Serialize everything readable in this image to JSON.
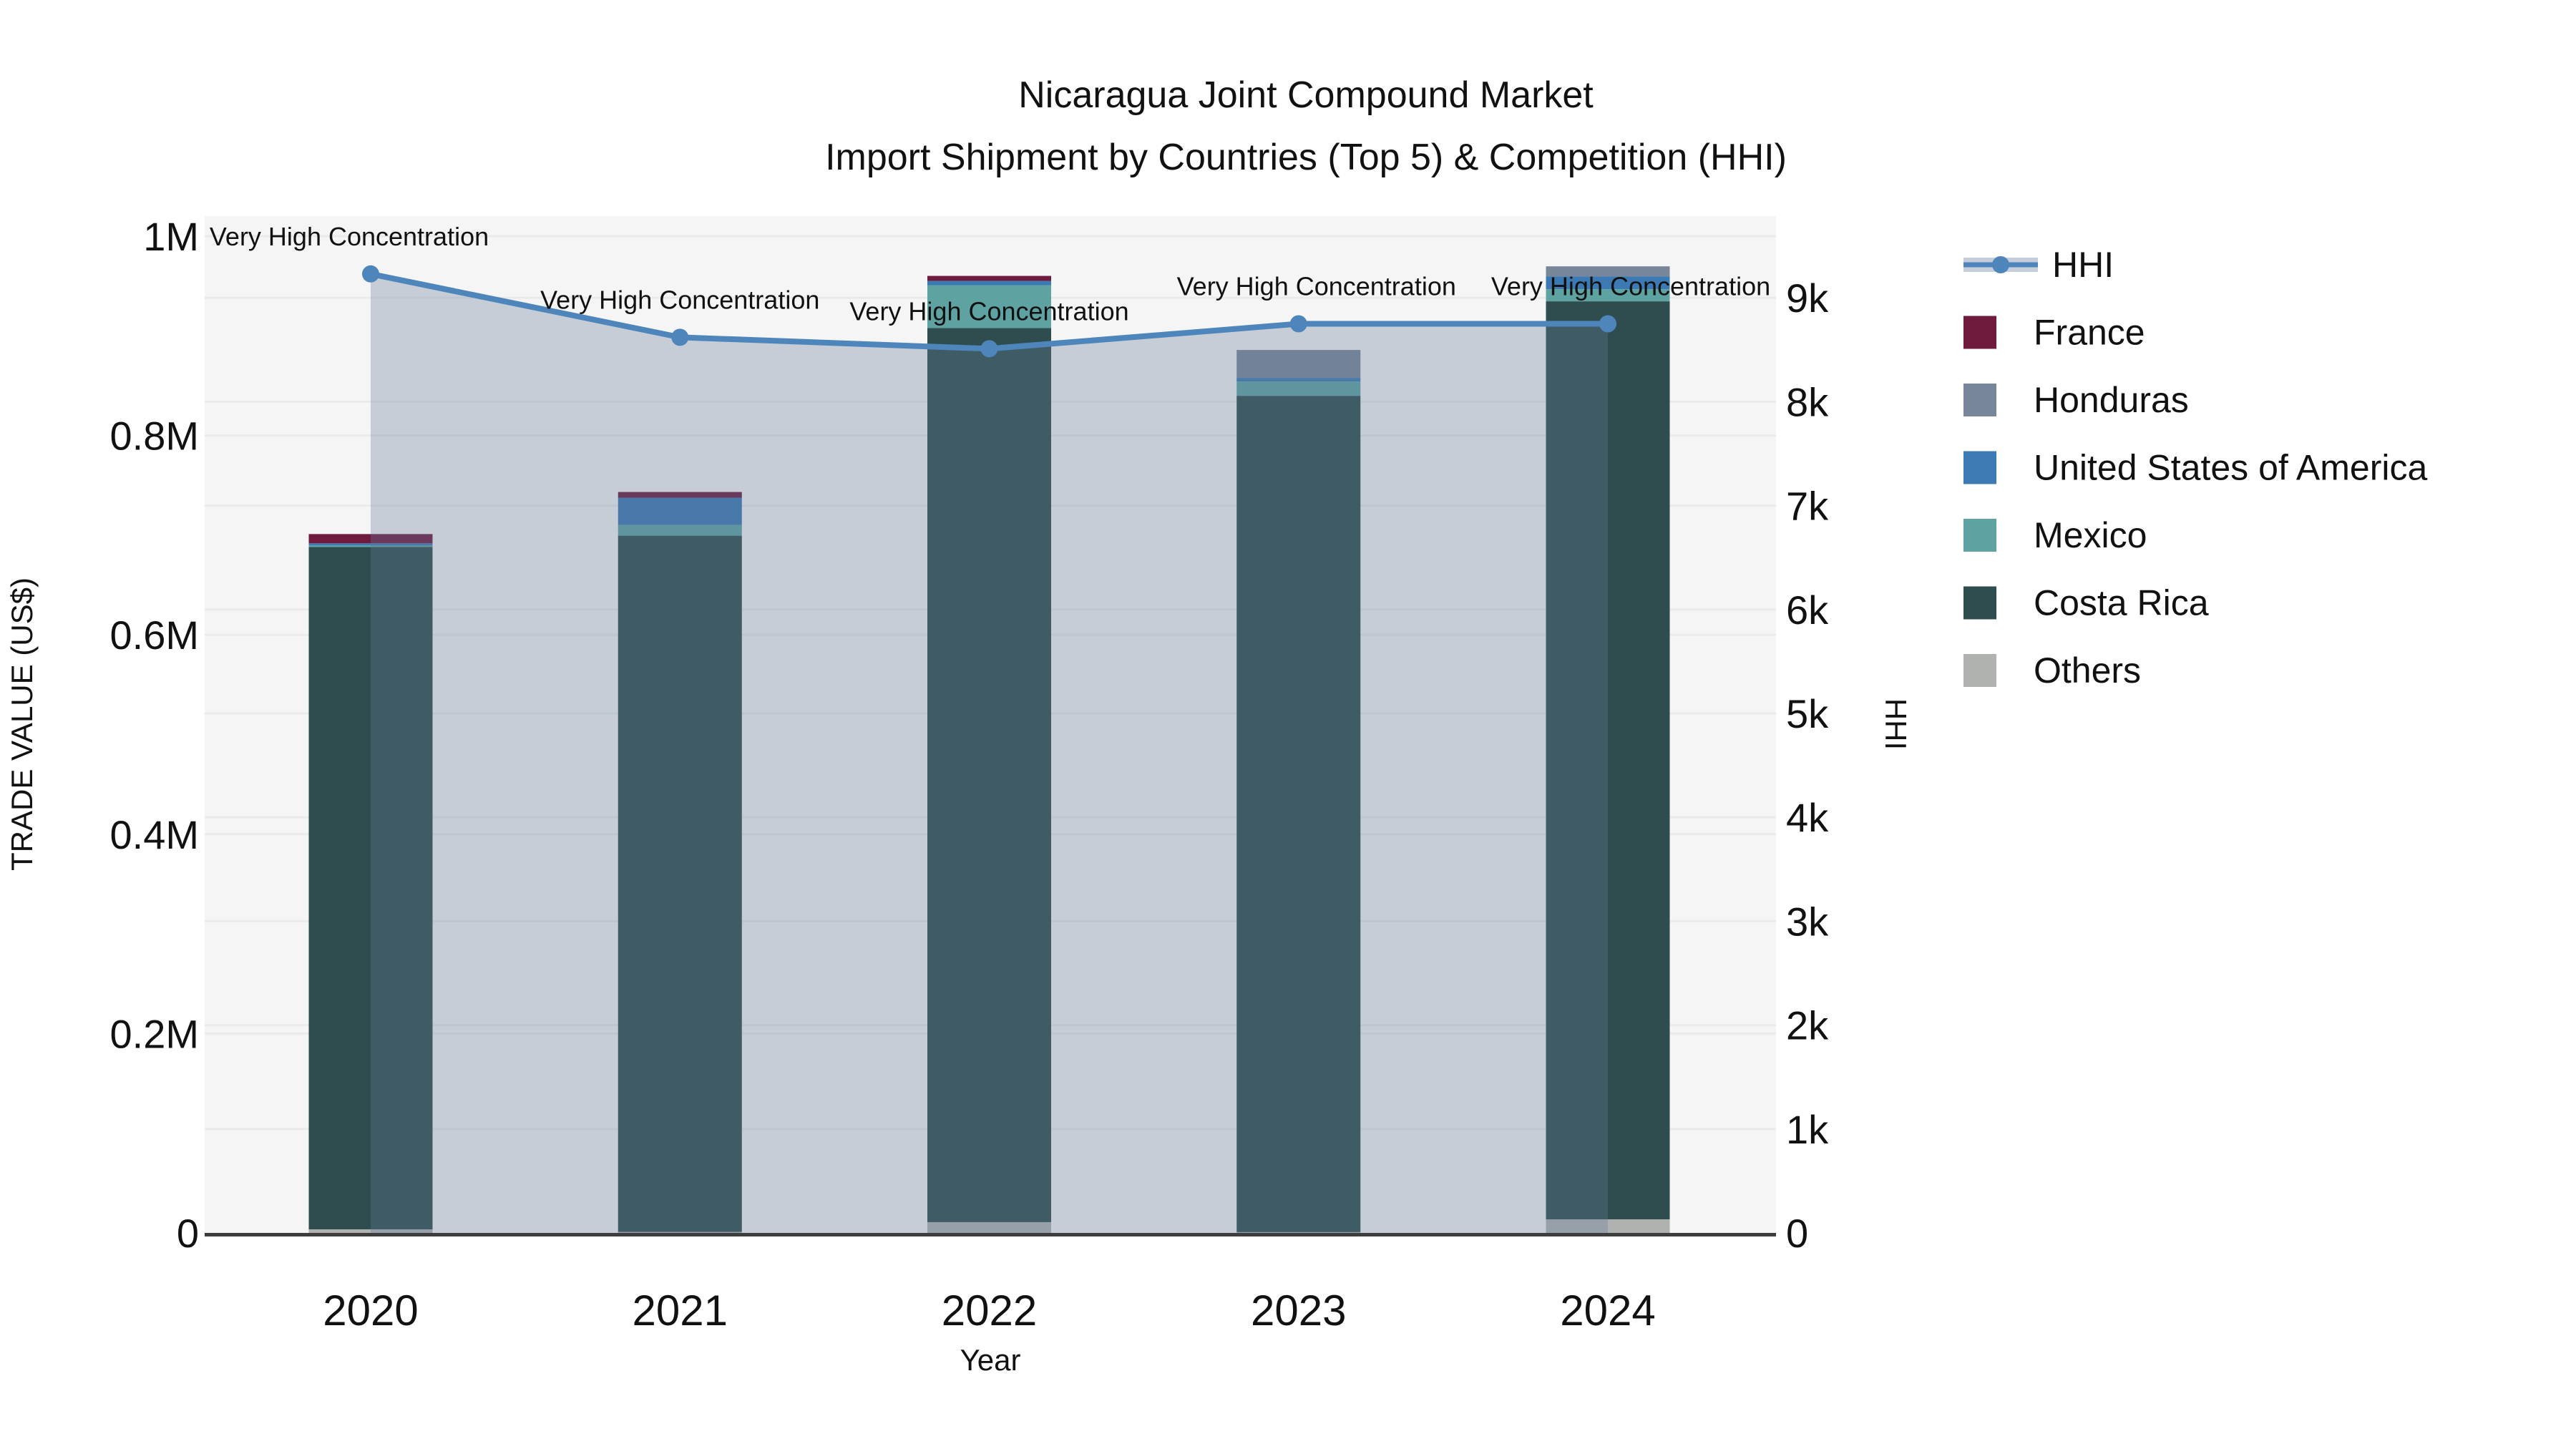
{
  "title": {
    "line1": "Nicaragua Joint Compound Market",
    "line2": "Import Shipment by Countries (Top 5) & Competition (HHI)"
  },
  "axes": {
    "x": {
      "title": "Year",
      "tick_labels": [
        "2020",
        "2021",
        "2022",
        "2023",
        "2024"
      ]
    },
    "y_left": {
      "title": "TRADE VALUE (US$)",
      "tick_labels": [
        "0",
        "0.2M",
        "0.4M",
        "0.6M",
        "0.8M",
        "1M"
      ],
      "tick_values": [
        0,
        200000,
        400000,
        600000,
        800000,
        1000000
      ]
    },
    "y_right": {
      "title": "HHI",
      "tick_labels": [
        "0",
        "1k",
        "2k",
        "3k",
        "4k",
        "5k",
        "6k",
        "7k",
        "8k",
        "9k"
      ],
      "tick_values": [
        0,
        1000,
        2000,
        3000,
        4000,
        5000,
        6000,
        7000,
        8000,
        9000
      ]
    }
  },
  "legend": {
    "items": [
      {
        "label": "HHI",
        "type": "line",
        "color": "#4E86BC",
        "band_color": "#C5CEDA"
      },
      {
        "label": "France",
        "type": "swatch",
        "color": "#6E1B3E"
      },
      {
        "label": "Honduras",
        "type": "swatch",
        "color": "#78869A"
      },
      {
        "label": "United States of America",
        "type": "swatch",
        "color": "#3D7AB4"
      },
      {
        "label": "Mexico",
        "type": "swatch",
        "color": "#5EA3A2"
      },
      {
        "label": "Costa Rica",
        "type": "swatch",
        "color": "#2F4D4F"
      },
      {
        "label": "Others",
        "type": "swatch",
        "color": "#B0B2B0"
      }
    ]
  },
  "annotation_text": "Very High Concentration",
  "colors": {
    "plot_background": "#F5F5F5",
    "gridline": "rgba(0,0,0,0.045)",
    "axis_line": "#3E3E3E",
    "hhi_line": "#4E86BC",
    "hhi_area_fill": "rgba(98,120,152,0.32)",
    "annotation_text": "#1B1B1B"
  },
  "chart_data": {
    "type": "bar",
    "stacked": true,
    "categories": [
      "2020",
      "2021",
      "2022",
      "2023",
      "2024"
    ],
    "bar_series_bottom_to_top": [
      {
        "name": "Others",
        "color": "#B0B2B0",
        "values": [
          3600,
          1000,
          10800,
          800,
          13600
        ]
      },
      {
        "name": "Costa Rica",
        "color": "#2F4D4F",
        "values": [
          684500,
          698500,
          897000,
          839000,
          921000
        ]
      },
      {
        "name": "Mexico",
        "color": "#5EA3A2",
        "values": [
          1500,
          10800,
          43000,
          14400,
          12200
        ]
      },
      {
        "name": "United States of America",
        "color": "#3D7AB4",
        "values": [
          2200,
          27300,
          4300,
          3600,
          12900
        ]
      },
      {
        "name": "Honduras",
        "color": "#78869A",
        "values": [
          0,
          0,
          0,
          28000,
          10000
        ]
      },
      {
        "name": "France",
        "color": "#6E1B3E",
        "values": [
          9300,
          5700,
          5000,
          0,
          0
        ]
      }
    ],
    "bar_totals": [
      701100,
      743300,
      960100,
      885800,
      969700
    ],
    "line_series": {
      "name": "HHI",
      "axis": "right",
      "color": "#4E86BC",
      "values": [
        9230,
        8620,
        8510,
        8750,
        8750
      ],
      "area_fill": true,
      "point_annotations": [
        "Very High Concentration",
        "Very High Concentration",
        "Very High Concentration",
        "Very High Concentration",
        "Very High Concentration"
      ]
    },
    "title": "Nicaragua Joint Compound Market — Import Shipment by Countries (Top 5) & Competition (HHI)",
    "xlabel": "Year",
    "ylabel_left": "TRADE VALUE (US$)",
    "ylabel_right": "HHI",
    "ylim_left": [
      0,
      1020000
    ],
    "ylim_right": [
      0,
      9786
    ],
    "grid": true,
    "legend_position": "right"
  }
}
